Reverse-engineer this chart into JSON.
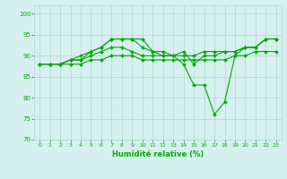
{
  "xlabel": "Humidité relative (%)",
  "xlim": [
    -0.5,
    23.5
  ],
  "ylim": [
    70,
    102
  ],
  "yticks": [
    70,
    75,
    80,
    85,
    90,
    95,
    100
  ],
  "xticks": [
    0,
    1,
    2,
    3,
    4,
    5,
    6,
    7,
    8,
    9,
    10,
    11,
    12,
    13,
    14,
    15,
    16,
    17,
    18,
    19,
    20,
    21,
    22,
    23
  ],
  "background_color": "#d6f0f0",
  "grid_color": "#b0d8cc",
  "line_color": "#00aa00",
  "lines": [
    [
      88,
      88,
      88,
      89,
      89,
      91,
      92,
      94,
      94,
      94,
      94,
      91,
      91,
      90,
      88,
      83,
      83,
      76,
      79,
      90,
      92,
      92,
      94,
      94
    ],
    [
      88,
      88,
      88,
      89,
      90,
      91,
      92,
      94,
      94,
      94,
      92,
      91,
      90,
      90,
      91,
      88,
      90,
      90,
      91,
      91,
      92,
      92,
      94,
      94
    ],
    [
      88,
      88,
      88,
      89,
      89,
      90,
      91,
      92,
      92,
      91,
      90,
      90,
      90,
      90,
      90,
      90,
      91,
      91,
      91,
      91,
      92,
      92,
      94,
      94
    ],
    [
      88,
      88,
      88,
      88,
      88,
      89,
      89,
      90,
      90,
      90,
      89,
      89,
      89,
      89,
      89,
      89,
      89,
      89,
      89,
      90,
      90,
      91,
      91,
      91
    ]
  ]
}
